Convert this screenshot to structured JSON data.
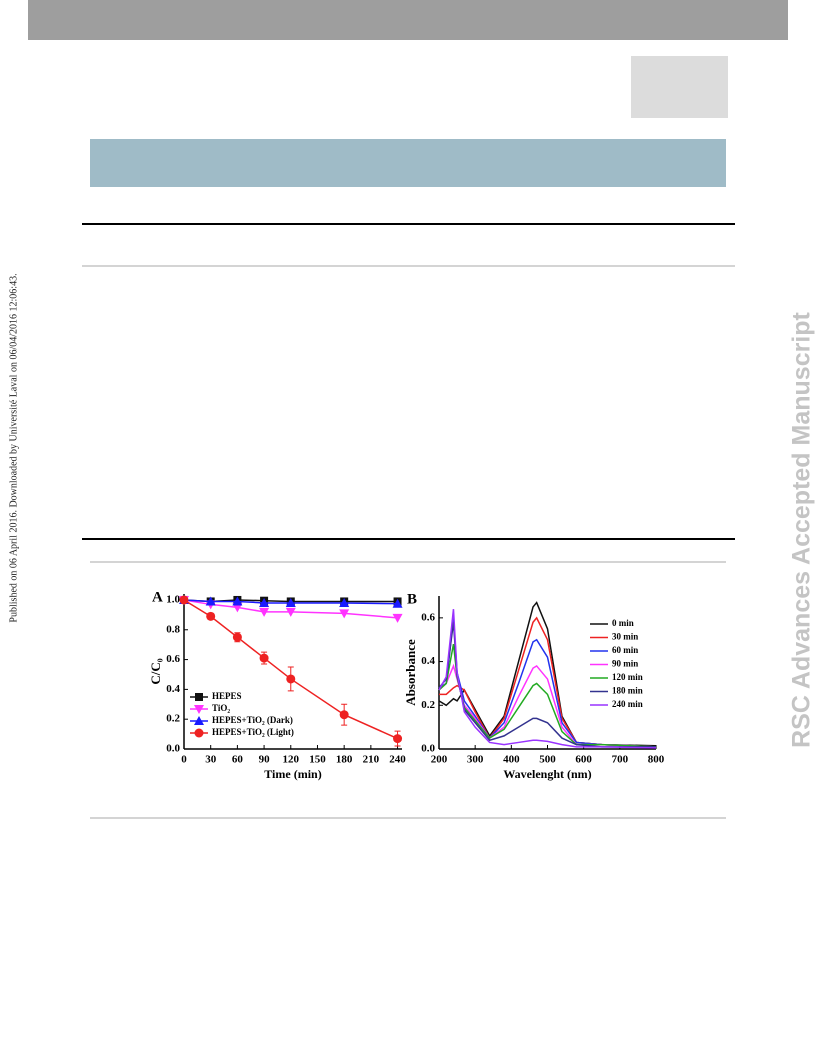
{
  "side_note": "Published on 06 April 2016. Downloaded by Université Laval on 06/04/2016 12:06:43.",
  "watermark": "RSC Advances Accepted Manuscript",
  "chart_data": [
    {
      "type": "line",
      "panel": "A",
      "x_label": "Time (min)",
      "y_label": "C/C₀",
      "x": [
        0,
        30,
        60,
        90,
        120,
        180,
        240
      ],
      "xlim": [
        0,
        245
      ],
      "xticks": [
        0,
        30,
        60,
        90,
        120,
        150,
        180,
        210,
        240
      ],
      "ylim": [
        0,
        1.04
      ],
      "yticks": [
        {
          "value": 0,
          "label": "0.0"
        },
        0.2,
        0.4,
        0.6,
        0.8,
        {
          "value": 1,
          "label": "1.0"
        }
      ],
      "legend": "lower left",
      "series": [
        {
          "name": "HEPES",
          "color": "#111111",
          "marker": "square",
          "values": [
            1.0,
            0.99,
            1.0,
            0.995,
            0.99,
            0.99,
            0.99
          ]
        },
        {
          "name": "TiO₂",
          "color": "#ff33ff",
          "marker": "down-triangle",
          "values": [
            1.0,
            0.97,
            0.95,
            0.92,
            0.92,
            0.91,
            0.88
          ]
        },
        {
          "name": "HEPES+TiO₂ (Dark)",
          "color": "#1a1aff",
          "marker": "triangle",
          "values": [
            1.0,
            0.99,
            0.99,
            0.98,
            0.98,
            0.98,
            0.975
          ]
        },
        {
          "name": "HEPES+TiO₂ (Light)",
          "color": "#ee2222",
          "marker": "circle",
          "values": [
            1.0,
            0.89,
            0.75,
            0.61,
            0.47,
            0.23,
            0.07
          ],
          "errors": [
            0.01,
            0.02,
            0.03,
            0.04,
            0.08,
            0.07,
            0.05
          ]
        }
      ]
    },
    {
      "type": "line",
      "panel": "B",
      "x_label": "Wavelenght (nm)",
      "y_label": "Absorbance",
      "x": [
        200,
        220,
        240,
        250,
        270,
        300,
        340,
        380,
        420,
        460,
        470,
        500,
        540,
        580,
        650,
        800
      ],
      "xlim": [
        200,
        800
      ],
      "xticks": [
        200,
        300,
        400,
        500,
        600,
        700,
        800
      ],
      "ylim": [
        0,
        0.7
      ],
      "yticks": [
        {
          "value": 0,
          "label": "0.0"
        },
        0.2,
        0.4,
        0.6
      ],
      "legend": "upper right",
      "series": [
        {
          "name": "0 min",
          "color": "#111111",
          "values": [
            0.22,
            0.2,
            0.23,
            0.22,
            0.27,
            0.18,
            0.06,
            0.15,
            0.4,
            0.65,
            0.67,
            0.55,
            0.15,
            0.03,
            0.02,
            0.015
          ]
        },
        {
          "name": "30 min",
          "color": "#ee2222",
          "values": [
            0.25,
            0.25,
            0.28,
            0.29,
            0.27,
            0.17,
            0.05,
            0.14,
            0.36,
            0.58,
            0.6,
            0.5,
            0.14,
            0.03,
            0.02,
            0.01
          ]
        },
        {
          "name": "60 min",
          "color": "#2233ee",
          "values": [
            0.28,
            0.3,
            0.6,
            0.35,
            0.22,
            0.15,
            0.05,
            0.12,
            0.3,
            0.49,
            0.5,
            0.42,
            0.12,
            0.03,
            0.02,
            0.01
          ]
        },
        {
          "name": "90 min",
          "color": "#ff33ff",
          "values": [
            0.27,
            0.3,
            0.38,
            0.32,
            0.2,
            0.14,
            0.05,
            0.1,
            0.24,
            0.37,
            0.38,
            0.32,
            0.1,
            0.02,
            0.02,
            0.01
          ]
        },
        {
          "name": "120 min",
          "color": "#22aa22",
          "values": [
            0.27,
            0.3,
            0.48,
            0.33,
            0.19,
            0.13,
            0.05,
            0.09,
            0.19,
            0.29,
            0.3,
            0.25,
            0.08,
            0.02,
            0.02,
            0.01
          ]
        },
        {
          "name": "180 min",
          "color": "#33338f",
          "values": [
            0.28,
            0.32,
            0.58,
            0.34,
            0.18,
            0.12,
            0.04,
            0.06,
            0.1,
            0.14,
            0.14,
            0.12,
            0.05,
            0.02,
            0.01,
            0.01
          ]
        },
        {
          "name": "240 min",
          "color": "#9933ff",
          "values": [
            0.27,
            0.33,
            0.64,
            0.35,
            0.17,
            0.1,
            0.03,
            0.02,
            0.03,
            0.04,
            0.04,
            0.035,
            0.02,
            0.01,
            0.01,
            0.005
          ]
        }
      ]
    }
  ]
}
